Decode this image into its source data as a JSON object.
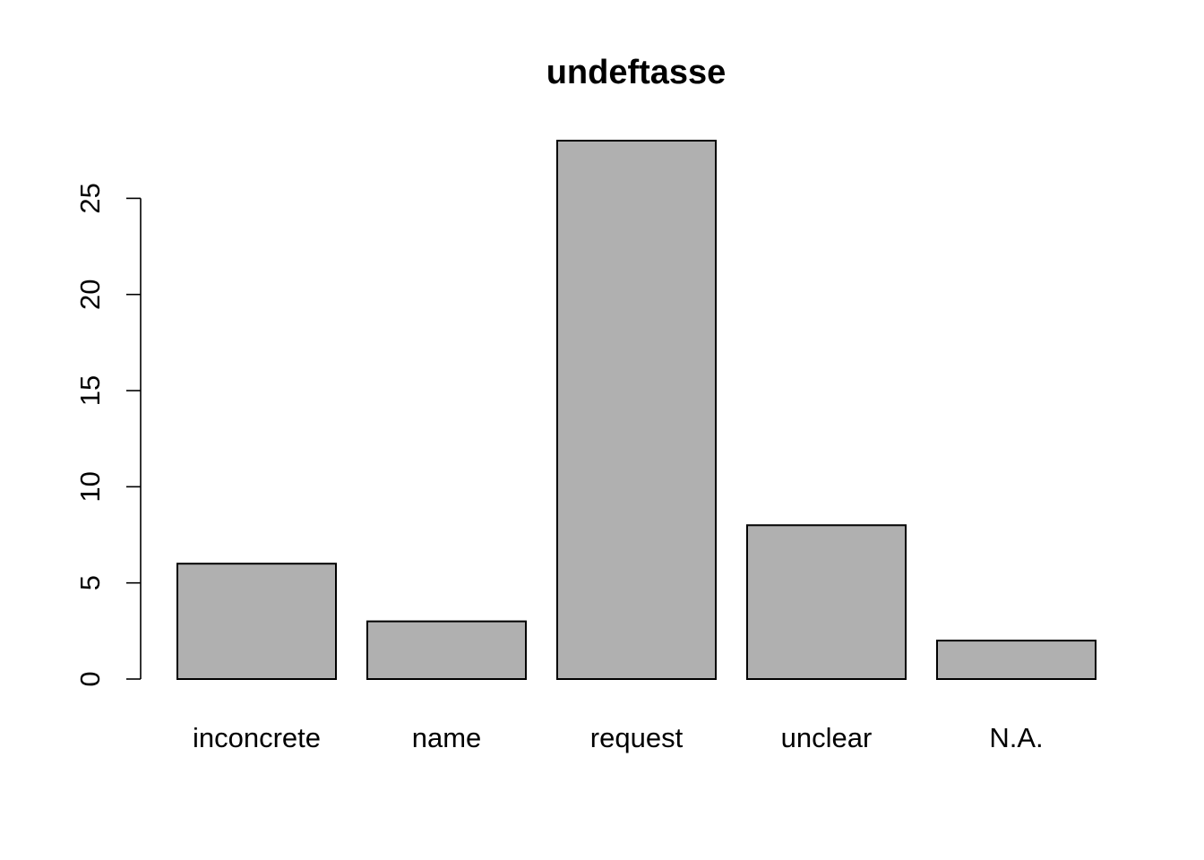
{
  "chart_data": {
    "type": "bar",
    "title": "undeftasse",
    "xlabel": "",
    "ylabel": "",
    "categories": [
      "inconcrete",
      "name",
      "request",
      "unclear",
      "N.A."
    ],
    "values": [
      6,
      3,
      28,
      8,
      2
    ],
    "ylim": [
      0,
      28
    ],
    "yticks": [
      0,
      5,
      10,
      15,
      20,
      25
    ],
    "ytick_labels": [
      "0",
      "5",
      "10",
      "15",
      "20",
      "25"
    ],
    "grid": false,
    "legend": "none",
    "bar_color": "#b0b0b0",
    "bar_border_color": "#000000"
  }
}
